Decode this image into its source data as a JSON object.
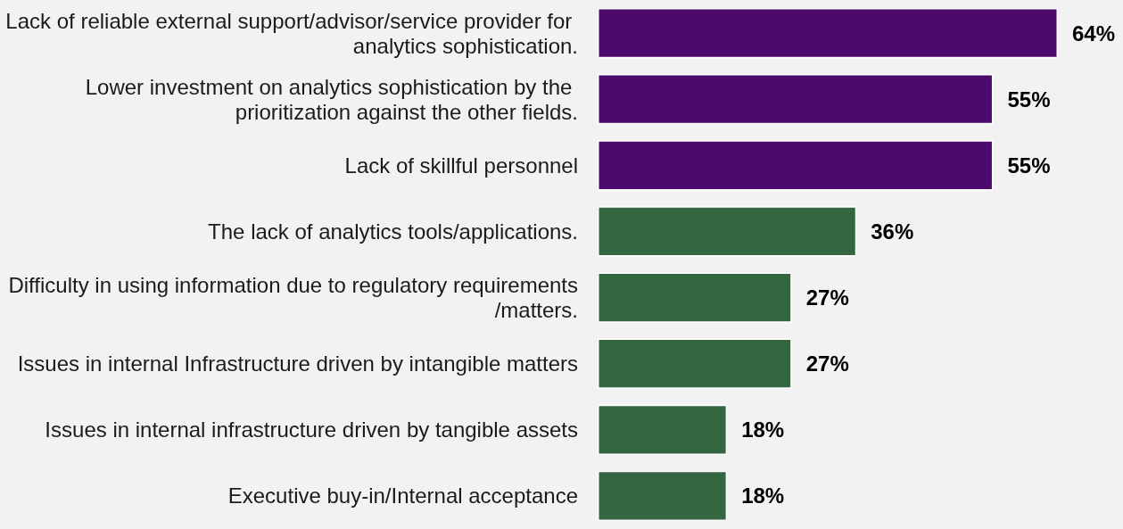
{
  "chart_data": {
    "type": "bar",
    "orientation": "horizontal",
    "categories": [
      "Lack of reliable external support/advisor/service provider for analytics sophistication.",
      "Lower investment on analytics sophistication by the prioritization against the other fields.",
      "Lack of skillful personnel",
      "The lack of analytics tools/applications.",
      "Difficulty in using information due to regulatory requirements/matters.",
      "Issues in internal Infrastructure driven by intangible matters",
      "Issues in internal infrastructure driven by tangible assets",
      "Executive buy-in/Internal acceptance"
    ],
    "values": [
      64,
      55,
      55,
      36,
      27,
      27,
      18,
      18
    ],
    "colors": [
      "#4b0a6c",
      "#4b0a6c",
      "#4b0a6c",
      "#336641",
      "#336641",
      "#336641",
      "#336641",
      "#336641"
    ],
    "value_labels": [
      "64%",
      "55%",
      "55%",
      "36%",
      "27%",
      "27%",
      "18%",
      "18%"
    ]
  }
}
